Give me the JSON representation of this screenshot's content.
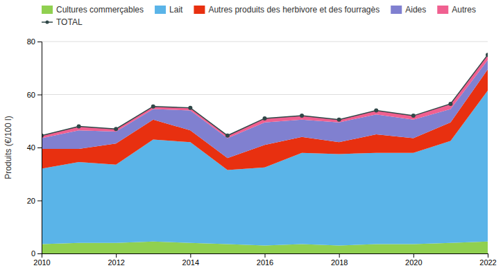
{
  "chart_data": {
    "type": "area",
    "stacked": true,
    "y_label": "Produits (€/100 l)",
    "x": [
      2010,
      2011,
      2012,
      2013,
      2014,
      2015,
      2016,
      2017,
      2018,
      2019,
      2020,
      2021,
      2022
    ],
    "xlim": [
      2010,
      2022
    ],
    "xticks": [
      2010,
      2012,
      2014,
      2016,
      2018,
      2020,
      2022
    ],
    "ylim": [
      0,
      80
    ],
    "yticks": [
      0,
      20,
      40,
      60,
      80
    ],
    "grid": true,
    "legend": "top",
    "series": [
      {
        "name": "Cultures commerçables",
        "color": "#90d050",
        "values": [
          3.5,
          4.0,
          4.0,
          4.5,
          4.0,
          3.5,
          3.0,
          3.5,
          3.0,
          3.5,
          3.5,
          4.0,
          4.5
        ]
      },
      {
        "name": "Lait",
        "color": "#5ab4e8",
        "values": [
          28.5,
          30.5,
          29.5,
          38.5,
          38.0,
          28.0,
          29.5,
          34.5,
          34.5,
          34.5,
          34.5,
          38.5,
          57.0
        ]
      },
      {
        "name": "Autres produits des herbivore et des fourragès",
        "color": "#e83010",
        "values": [
          7.5,
          5.0,
          8.0,
          7.5,
          4.5,
          4.5,
          8.5,
          6.0,
          4.5,
          7.0,
          5.5,
          7.0,
          8.0
        ]
      },
      {
        "name": "Aides",
        "color": "#8080d0",
        "values": [
          4.0,
          7.0,
          4.5,
          4.0,
          7.5,
          7.5,
          8.5,
          6.5,
          7.5,
          7.5,
          7.0,
          5.0,
          3.5
        ]
      },
      {
        "name": "Autres",
        "color": "#f06090",
        "values": [
          1.0,
          1.5,
          1.0,
          1.0,
          1.0,
          1.0,
          1.5,
          1.5,
          1.0,
          1.5,
          1.5,
          2.0,
          2.0
        ]
      },
      {
        "name": "TOTAL",
        "type": "line",
        "marker": "circle",
        "color": "#304848",
        "values": [
          44.5,
          48.0,
          47.0,
          55.5,
          55.0,
          44.5,
          51.0,
          52.0,
          50.5,
          54.0,
          52.0,
          56.5,
          75.0
        ]
      }
    ]
  }
}
